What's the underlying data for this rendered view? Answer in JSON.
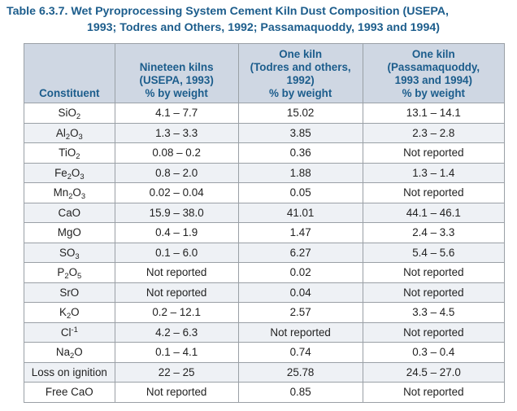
{
  "caption": {
    "line1": "Table 6.3.7. Wet Pyroprocessing System Cement Kiln Dust Composition (USEPA,",
    "line2": "1993; Todres and Others, 1992; Passamaquoddy, 1993 and 1994)"
  },
  "headers": [
    [
      "Constituent"
    ],
    [
      "Nineteen kilns",
      "(USEPA, 1993)",
      "% by weight"
    ],
    [
      "One kiln",
      "(Todres and others,",
      "1992)",
      "% by weight"
    ],
    [
      "One kiln",
      "(Passamaquoddy,",
      "1993 and 1994)",
      "% by weight"
    ]
  ],
  "rows": [
    {
      "constituent": [
        [
          "SiO",
          ""
        ],
        [
          "2",
          "sub"
        ]
      ],
      "values": [
        "4.1 – 7.7",
        "15.02",
        "13.1 – 14.1"
      ]
    },
    {
      "constituent": [
        [
          "Al",
          ""
        ],
        [
          "2",
          "sub"
        ],
        [
          "O",
          ""
        ],
        [
          "3",
          "sub"
        ]
      ],
      "values": [
        "1.3 – 3.3",
        "3.85",
        "2.3 – 2.8"
      ]
    },
    {
      "constituent": [
        [
          "TiO",
          ""
        ],
        [
          "2",
          "sub"
        ]
      ],
      "values": [
        "0.08 – 0.2",
        "0.36",
        "Not reported"
      ]
    },
    {
      "constituent": [
        [
          "Fe",
          ""
        ],
        [
          "2",
          "sub"
        ],
        [
          "O",
          ""
        ],
        [
          "3",
          "sub"
        ]
      ],
      "values": [
        "0.8 – 2.0",
        "1.88",
        "1.3 – 1.4"
      ]
    },
    {
      "constituent": [
        [
          "Mn",
          ""
        ],
        [
          "2",
          "sub"
        ],
        [
          "O",
          ""
        ],
        [
          "3",
          "sub"
        ]
      ],
      "values": [
        "0.02 – 0.04",
        "0.05",
        "Not reported"
      ]
    },
    {
      "constituent": [
        [
          "CaO",
          ""
        ]
      ],
      "values": [
        "15.9 – 38.0",
        "41.01",
        "44.1 – 46.1"
      ]
    },
    {
      "constituent": [
        [
          "MgO",
          ""
        ]
      ],
      "values": [
        "0.4 – 1.9",
        "1.47",
        "2.4 – 3.3"
      ]
    },
    {
      "constituent": [
        [
          "SO",
          ""
        ],
        [
          "3",
          "sub"
        ]
      ],
      "values": [
        "0.1 – 6.0",
        "6.27",
        "5.4 – 5.6"
      ]
    },
    {
      "constituent": [
        [
          "P",
          ""
        ],
        [
          "2",
          "sub"
        ],
        [
          "O",
          ""
        ],
        [
          "5",
          "sub"
        ]
      ],
      "values": [
        "Not reported",
        "0.02",
        "Not reported"
      ]
    },
    {
      "constituent": [
        [
          "SrO",
          ""
        ]
      ],
      "values": [
        "Not reported",
        "0.04",
        "Not reported"
      ]
    },
    {
      "constituent": [
        [
          "K",
          ""
        ],
        [
          "2",
          "sub"
        ],
        [
          "O",
          ""
        ]
      ],
      "values": [
        "0.2 – 12.1",
        "2.57",
        "3.3 – 4.5"
      ]
    },
    {
      "constituent": [
        [
          "Cl",
          ""
        ],
        [
          "-1",
          "sup"
        ]
      ],
      "values": [
        "4.2 – 6.3",
        "Not reported",
        "Not reported"
      ]
    },
    {
      "constituent": [
        [
          "Na",
          ""
        ],
        [
          "2",
          "sub"
        ],
        [
          "O",
          ""
        ]
      ],
      "values": [
        "0.1 – 4.1",
        "0.74",
        "0.3 – 0.4"
      ]
    },
    {
      "constituent": [
        [
          "Loss on ignition",
          ""
        ]
      ],
      "values": [
        "22 – 25",
        "25.78",
        "24.5 – 27.0"
      ]
    },
    {
      "constituent": [
        [
          "Free CaO",
          ""
        ]
      ],
      "values": [
        "Not reported",
        "0.85",
        "Not reported"
      ]
    }
  ]
}
